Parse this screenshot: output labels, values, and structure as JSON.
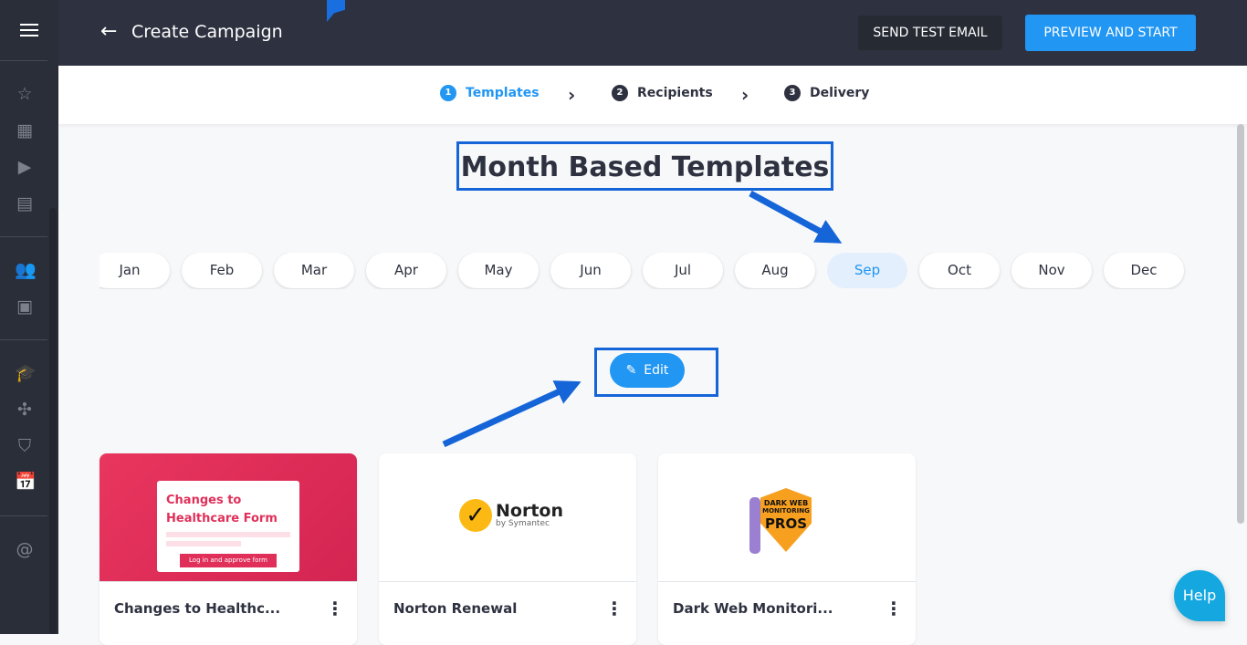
{
  "header": {
    "title": "Create Campaign",
    "send_test": "SEND TEST EMAIL",
    "preview_start": "PREVIEW AND START"
  },
  "stepper": [
    {
      "num": "1",
      "label": "Templates",
      "active": true
    },
    {
      "num": "2",
      "label": "Recipients"
    },
    {
      "num": "3",
      "label": "Delivery"
    }
  ],
  "heading": "Month Based Templates",
  "months": [
    "Jan",
    "Feb",
    "Mar",
    "Apr",
    "May",
    "Jun",
    "Jul",
    "Aug",
    "Sep",
    "Oct",
    "Nov",
    "Dec"
  ],
  "selected_month": "Sep",
  "edit_label": "Edit",
  "cards": [
    {
      "name": "Changes to Healthc...",
      "thumb_title": "Changes to Healthcare Form",
      "thumb_button": "Log in and approve form"
    },
    {
      "name": "Norton Renewal",
      "logo": "Norton",
      "logo_sub": "by Symantec"
    },
    {
      "name": "Dark Web Monitori...",
      "logo_line1": "DARK WEB",
      "logo_line2": "MONITORING",
      "logo_line3": "PROS"
    }
  ],
  "help": "Help",
  "colors": {
    "accent": "#2196f3",
    "header": "#2e3240",
    "annotation": "#1565d8"
  }
}
